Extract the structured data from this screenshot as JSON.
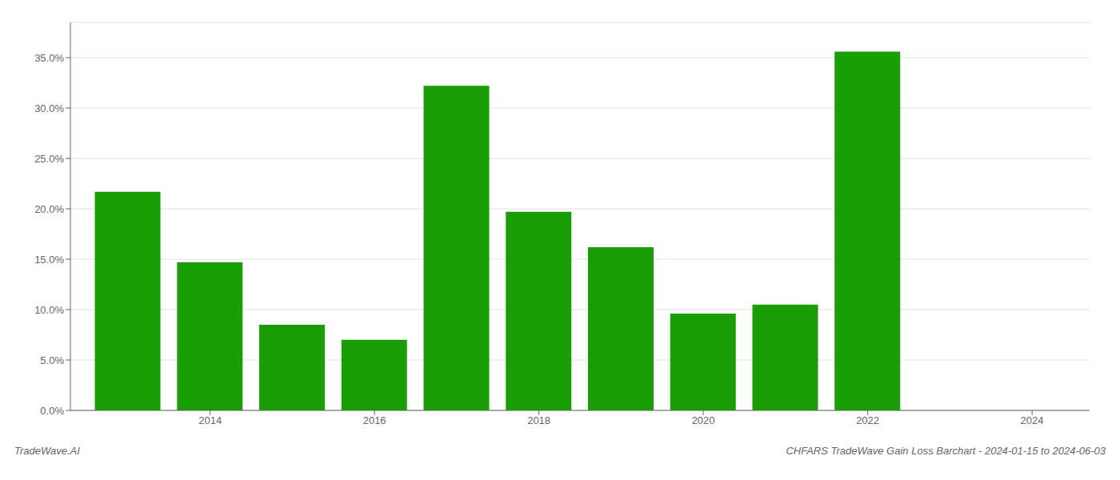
{
  "chart_data": {
    "type": "bar",
    "title": "CHFARS TradeWave Gain Loss Barchart - 2024-01-15 to 2024-06-03",
    "annotations": [
      "TradeWave.AI"
    ],
    "x": [
      2013,
      2014,
      2015,
      2016,
      2017,
      2018,
      2019,
      2020,
      2021,
      2022
    ],
    "values": [
      0.217,
      0.147,
      0.085,
      0.07,
      0.322,
      0.197,
      0.162,
      0.096,
      0.105,
      0.356
    ],
    "color": "#1a9e06",
    "xlim": [
      2012.3,
      2024.7
    ],
    "xticks": [
      2014,
      2016,
      2018,
      2020,
      2022,
      2024
    ],
    "ylim": [
      0,
      0.385
    ],
    "yticks": [
      {
        "value": 0.0,
        "label": "0.0%"
      },
      {
        "value": 0.05,
        "label": "5.0%"
      },
      {
        "value": 0.1,
        "label": "10.0%"
      },
      {
        "value": 0.15,
        "label": "15.0%"
      },
      {
        "value": 0.2,
        "label": "20.0%"
      },
      {
        "value": 0.25,
        "label": "25.0%"
      },
      {
        "value": 0.3,
        "label": "30.0%"
      },
      {
        "value": 0.35,
        "label": "35.0%"
      }
    ],
    "grid": "y"
  }
}
